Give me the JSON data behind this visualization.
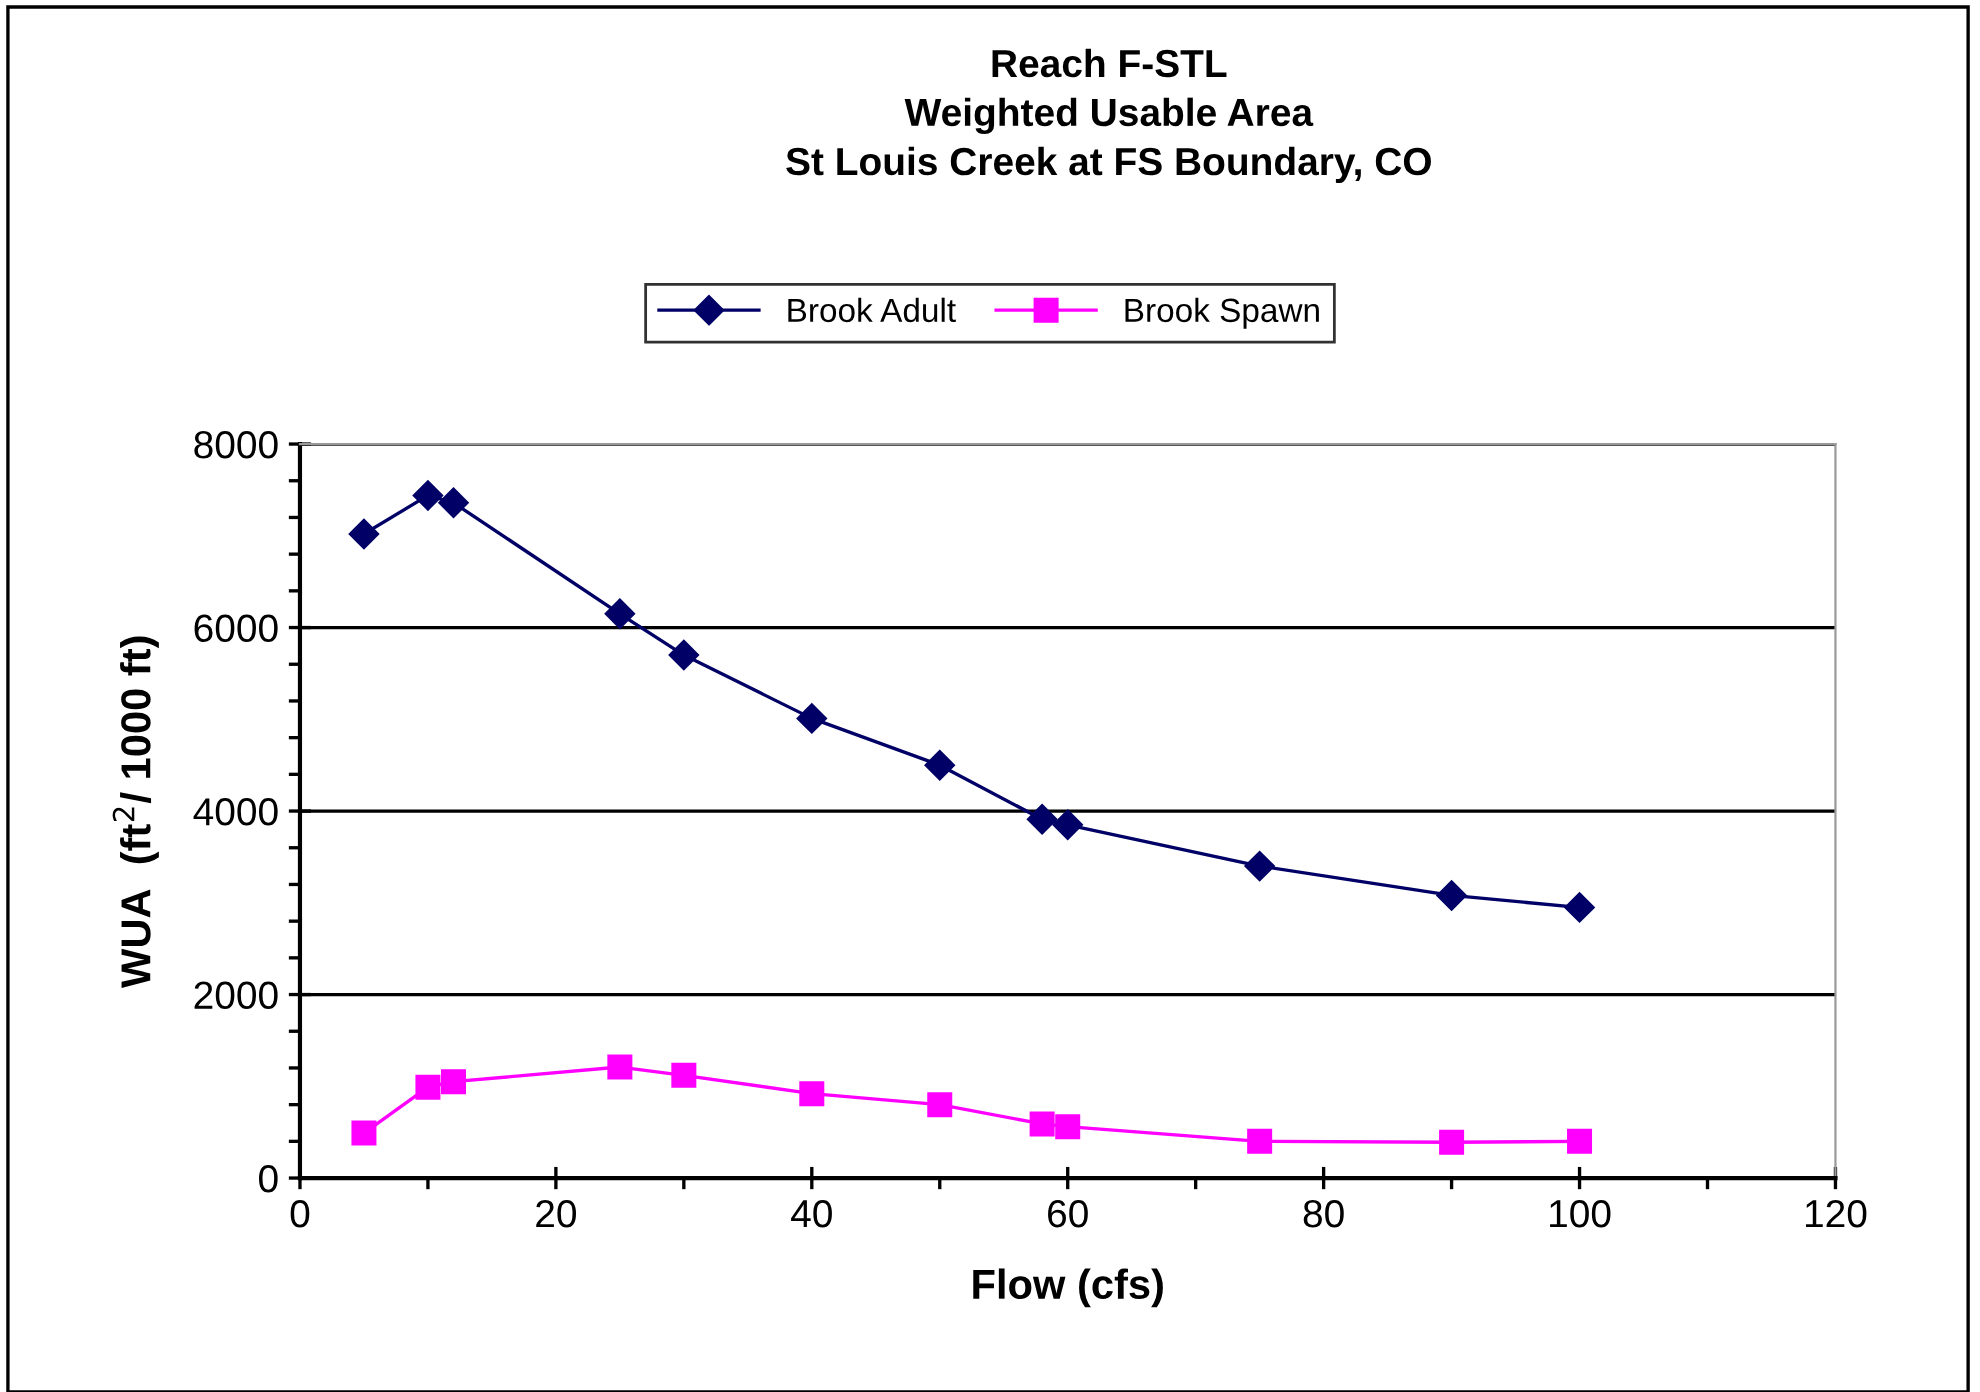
{
  "chart_data": {
    "type": "line",
    "title": "Reach F-STL\nWeighted Usable Area\nSt Louis Creek at FS Boundary, CO",
    "xlabel": "Flow (cfs)",
    "ylabel": "WUA  (ft$^{2}$/ 1000 ft)",
    "x": [
      5,
      10,
      12,
      25,
      30,
      40,
      50,
      58,
      60,
      75,
      90,
      100
    ],
    "series": [
      {
        "name": "Brook Adult",
        "color": "#000066",
        "marker": "diamond",
        "values": [
          7020,
          7440,
          7360,
          6150,
          5700,
          5010,
          4500,
          3910,
          3850,
          3400,
          3080,
          2950
        ]
      },
      {
        "name": "Brook Spawn",
        "color": "#ff00ff",
        "marker": "square",
        "values": [
          490,
          990,
          1050,
          1210,
          1120,
          920,
          800,
          590,
          560,
          400,
          390,
          400
        ]
      }
    ],
    "xlim": [
      0,
      120
    ],
    "xticks": [
      0,
      20,
      40,
      60,
      80,
      100,
      120
    ],
    "ylim": [
      0,
      8000
    ],
    "yticks": [
      0,
      2000,
      4000,
      6000,
      8000
    ],
    "grid": "y",
    "legend": "top",
    "line_style": "solid"
  }
}
